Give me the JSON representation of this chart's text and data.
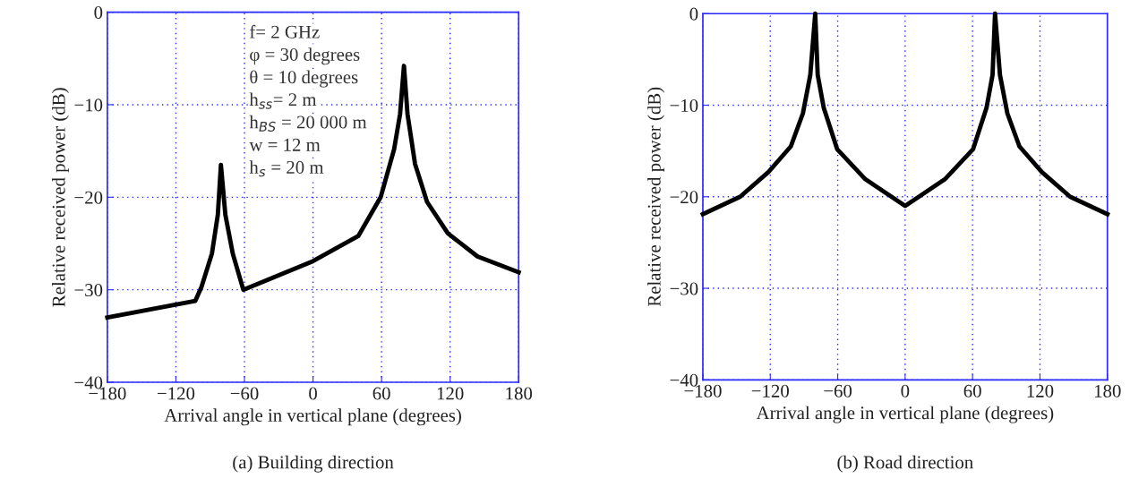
{
  "chart_data": [
    {
      "type": "line",
      "title": "(a) Building direction",
      "xlabel": "Arrival angle in vertical plane (degrees)",
      "ylabel": "Relative received power (dB)",
      "x": [
        -180,
        -103,
        -97.6,
        -88.5,
        -83.3,
        -80.6,
        -76.7,
        -70.2,
        -61,
        0,
        39.6,
        59.2,
        71,
        76.2,
        79.6,
        82.7,
        89.3,
        99.8,
        118,
        144,
        180
      ],
      "series": [
        {
          "color": "#000000",
          "values": [
            -33,
            -31.2,
            -29.7,
            -26.1,
            -21.9,
            -16.5,
            -21.9,
            -26.1,
            -30,
            -26.9,
            -24.2,
            -20,
            -14.8,
            -11,
            -5.8,
            -11,
            -16.4,
            -20.5,
            -23.9,
            -26.4,
            -28.1
          ]
        }
      ],
      "xlim": [
        -180,
        180
      ],
      "ylim": [
        -40,
        0
      ],
      "xticks": [
        -180,
        -120,
        -60,
        0,
        60,
        120,
        180
      ],
      "yticks": [
        -40,
        -30,
        -20,
        -10,
        0
      ],
      "grid": true,
      "marker": "none",
      "line_style": "solid",
      "annotations": [
        "f= 2 GHz",
        "φ = 30 degrees",
        "θ = 10 degrees",
        "h$_{ss}$= 2 m",
        "h$_{BS}$ = 20 000 m",
        "w = 12 m",
        "h$_{s}$ = 20 m"
      ]
    },
    {
      "type": "line",
      "title": "(b) Road direction",
      "xlabel": "Arrival angle in vertical plane (degrees)",
      "ylabel": "Relative received power (dB)",
      "x": [
        -180,
        -146.8,
        -121.6,
        -101.7,
        -91,
        -84.4,
        -80,
        -77.8,
        -72.4,
        -60.5,
        -35.3,
        0,
        35.3,
        60.5,
        72.4,
        77.8,
        80,
        84.4,
        91,
        101.7,
        121.6,
        146.8,
        180
      ],
      "series": [
        {
          "color": "#000000",
          "values": [
            -21.9,
            -20,
            -17.3,
            -14.5,
            -10.9,
            -6.7,
            0,
            -6.7,
            -10.3,
            -14.8,
            -18.1,
            -21,
            -18.1,
            -14.8,
            -10.3,
            -6.7,
            0,
            -6.7,
            -10.9,
            -14.5,
            -17.3,
            -20,
            -21.9
          ]
        }
      ],
      "xlim": [
        -180,
        180
      ],
      "ylim": [
        -40,
        0
      ],
      "xticks": [
        -180,
        -120,
        -60,
        0,
        60,
        120,
        180
      ],
      "yticks": [
        -40,
        -30,
        -20,
        -10,
        0
      ],
      "grid": true,
      "marker": "none",
      "line_style": "solid"
    }
  ]
}
